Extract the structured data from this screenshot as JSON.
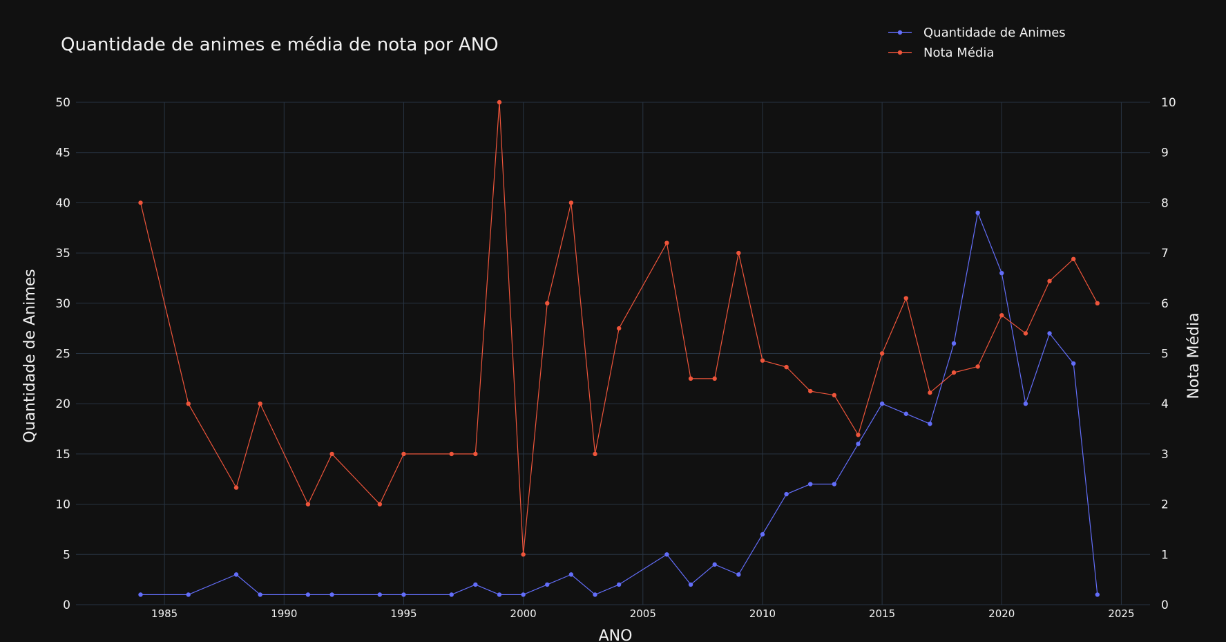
{
  "chart_data": {
    "type": "line",
    "title": "Quantidade de animes e média de nota por ANO",
    "xlabel": "ANO",
    "ylabel": "Quantidade de Animes",
    "y2label": "Nota Média",
    "xlim": [
      1981.3,
      2026.2
    ],
    "ylim": [
      0,
      50
    ],
    "y2lim": [
      0,
      10
    ],
    "xticks": [
      1985,
      1990,
      1995,
      2000,
      2005,
      2010,
      2015,
      2020,
      2025
    ],
    "yticks": [
      0,
      5,
      10,
      15,
      20,
      25,
      30,
      35,
      40,
      45,
      50
    ],
    "y2ticks": [
      0,
      1,
      2,
      3,
      4,
      5,
      6,
      7,
      8,
      9,
      10
    ],
    "legend_position": "top-right",
    "grid": true,
    "series": [
      {
        "name": "Quantidade de Animes",
        "axis": "left",
        "color": "#636efa",
        "x": [
          1984,
          1986,
          1988,
          1989,
          1991,
          1992,
          1994,
          1995,
          1997,
          1998,
          1999,
          2000,
          2001,
          2002,
          2003,
          2004,
          2006,
          2007,
          2008,
          2009,
          2010,
          2011,
          2012,
          2013,
          2014,
          2015,
          2016,
          2017,
          2018,
          2019,
          2020,
          2021,
          2022,
          2023,
          2024
        ],
        "y": [
          1,
          1,
          3,
          1,
          1,
          1,
          1,
          1,
          1,
          2,
          1,
          1,
          2,
          3,
          1,
          2,
          5,
          2,
          4,
          3,
          7,
          11,
          12,
          12,
          16,
          20,
          19,
          18,
          26,
          39,
          33,
          20,
          27,
          24,
          1
        ]
      },
      {
        "name": "Nota Média",
        "axis": "right",
        "color": "#ef553b",
        "x": [
          1984,
          1986,
          1988,
          1989,
          1991,
          1992,
          1994,
          1995,
          1997,
          1998,
          1999,
          2000,
          2001,
          2002,
          2003,
          2004,
          2006,
          2007,
          2008,
          2009,
          2010,
          2011,
          2012,
          2013,
          2014,
          2015,
          2016,
          2017,
          2018,
          2019,
          2020,
          2021,
          2022,
          2023,
          2024
        ],
        "y": [
          8,
          4,
          2.33,
          4,
          2,
          3,
          2,
          3,
          3,
          3,
          10,
          1,
          6,
          8,
          3,
          5.5,
          7.2,
          4.5,
          4.5,
          7,
          4.86,
          4.73,
          4.25,
          4.17,
          3.38,
          5,
          6.1,
          4.22,
          4.62,
          4.74,
          5.76,
          5.4,
          6.44,
          6.88,
          6
        ]
      }
    ]
  },
  "colors": {
    "background": "#111111",
    "grid": "#283442",
    "text": "#f2f2f2"
  }
}
